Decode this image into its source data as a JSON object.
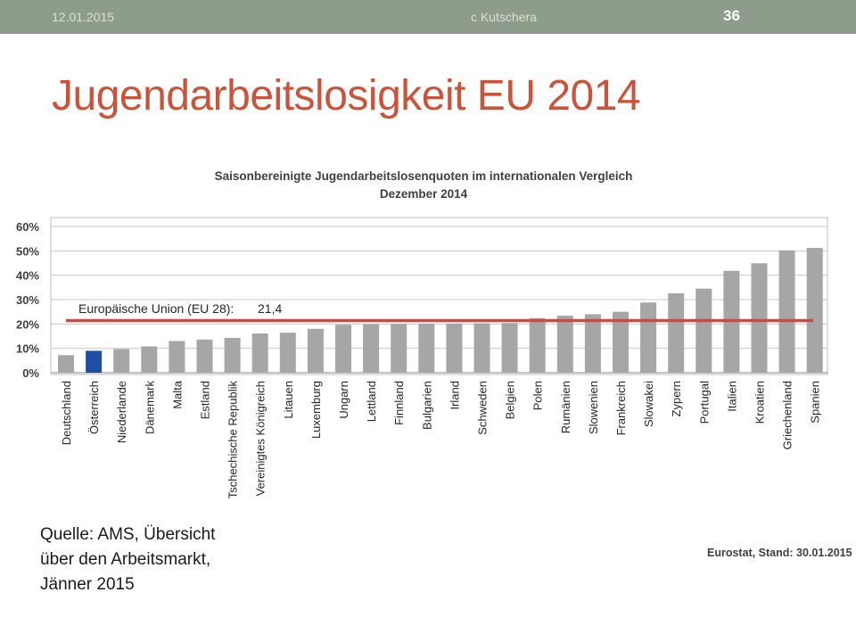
{
  "header": {
    "date": "12.01.2015",
    "author": "c Kutschera",
    "page_number": "36"
  },
  "slide": {
    "title": "Jugendarbeitslosigkeit EU 2014"
  },
  "source_note": {
    "lines": [
      "Quelle: AMS, Übersicht",
      "über den Arbeitsmarkt,",
      "Jänner 2015"
    ]
  },
  "eurostat_note": "Eurostat, Stand: 30.01.2015",
  "chart_data": {
    "type": "bar",
    "title": "Saisonbereinigte Jugendarbeitslosenquoten im internationalen Vergleich",
    "subtitle": "Dezember 2014",
    "ylim": [
      0,
      60
    ],
    "yticks": [
      0,
      10,
      20,
      30,
      40,
      50,
      60
    ],
    "ytick_labels": [
      "0%",
      "10%",
      "20%",
      "30%",
      "40%",
      "50%",
      "60%"
    ],
    "grid": true,
    "categories": [
      "Deutschland",
      "Österreich",
      "Niederlande",
      "Dänemark",
      "Malta",
      "Estland",
      "Tschechische Republik",
      "Vereinigtes Königreich",
      "Litauen",
      "Luxemburg",
      "Ungarn",
      "Lettland",
      "Finnland",
      "Bulgarien",
      "Irland",
      "Schweden",
      "Belgien",
      "Polen",
      "Rumänien",
      "Slowenien",
      "Frankreich",
      "Slowakei",
      "Zypern",
      "Portugal",
      "Italien",
      "Kroatien",
      "Griechenland",
      "Spanien"
    ],
    "values": [
      7.2,
      9.0,
      9.7,
      10.8,
      13.0,
      13.6,
      14.3,
      16.1,
      16.4,
      18.0,
      19.7,
      19.9,
      20.0,
      20.1,
      20.2,
      20.3,
      20.4,
      22.4,
      23.4,
      24.0,
      25.0,
      28.8,
      32.6,
      34.5,
      41.8,
      44.9,
      50.2,
      51.2
    ],
    "highlight_category": "Österreich",
    "bar_color": "#a6a6a6",
    "highlight_color": "#1f4fa3",
    "reference_line": {
      "label": "Europäische Union (EU 28):",
      "value_label": "21,4",
      "value": 21.4,
      "color": "#c0504d"
    }
  }
}
